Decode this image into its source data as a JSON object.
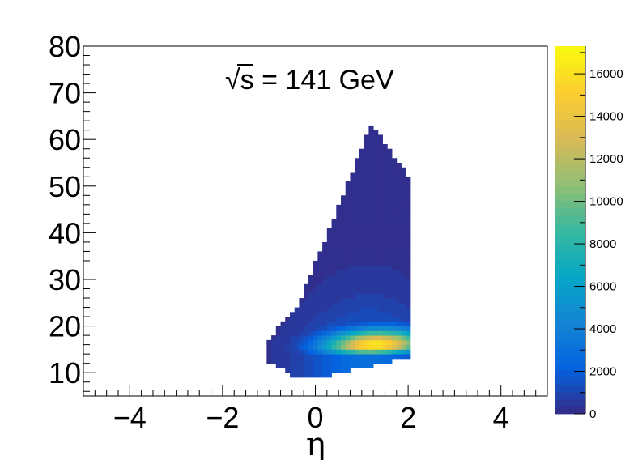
{
  "chart_data": {
    "type": "heatmap",
    "annotation": "s = 141 GeV",
    "annotation_parts": {
      "sqrt_symbol": "√",
      "variable": "s",
      "equation": " = 141 GeV"
    },
    "xlabel": "η",
    "ylabel": "",
    "xlim": [
      -5,
      5
    ],
    "ylim": [
      5,
      80
    ],
    "x_ticks": [
      -4,
      -2,
      0,
      2,
      4
    ],
    "x_tick_labels": [
      "−4",
      "−2",
      "0",
      "2",
      "4"
    ],
    "y_ticks": [
      10,
      20,
      30,
      40,
      50,
      60,
      70,
      80
    ],
    "y_tick_labels": [
      "10",
      "20",
      "30",
      "40",
      "50",
      "60",
      "70",
      "80"
    ],
    "z_range": [
      0,
      17300
    ],
    "z_ticks": [
      0,
      2000,
      4000,
      6000,
      8000,
      10000,
      12000,
      14000,
      16000
    ],
    "z_tick_labels": [
      "0",
      "2000",
      "4000",
      "6000",
      "8000",
      "10000",
      "12000",
      "14000",
      "16000"
    ],
    "colormap": "parula",
    "grid": false,
    "region_description_points": {
      "eta_range_of_data": [
        -1.05,
        2.05
      ],
      "pt_range_of_data": [
        9.5,
        64.0
      ],
      "peak": {
        "eta": 1.3,
        "y": 15.5,
        "z": 16500
      }
    },
    "colors": {
      "palette": [
        "#352a87",
        "#0363e1",
        "#1485d4",
        "#06a7c6",
        "#38b99e",
        "#92bf73",
        "#d9ba56",
        "#fcce2e",
        "#f9fb0e"
      ]
    }
  }
}
